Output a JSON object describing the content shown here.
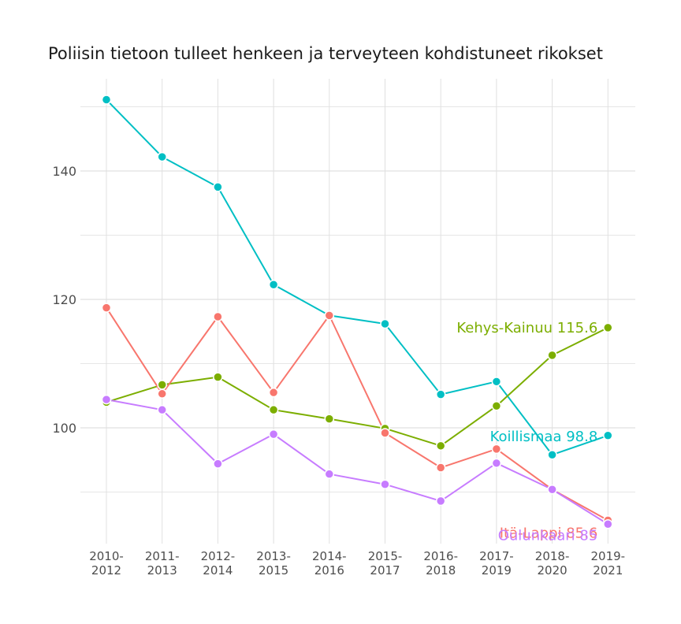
{
  "chart_data": {
    "type": "line",
    "title": "Poliisin tietoon tulleet henkeen ja terveyteen kohdistuneet rikokset",
    "xlabel": "",
    "ylabel": "",
    "categories": [
      [
        "2010-",
        "2012"
      ],
      [
        "2011-",
        "2013"
      ],
      [
        "2012-",
        "2014"
      ],
      [
        "2013-",
        "2015"
      ],
      [
        "2014-",
        "2016"
      ],
      [
        "2015-",
        "2017"
      ],
      [
        "2016-",
        "2018"
      ],
      [
        "2017-",
        "2019"
      ],
      [
        "2018-",
        "2020"
      ],
      [
        "2019-",
        "2021"
      ]
    ],
    "ylim": [
      82,
      153
    ],
    "yticks": [
      100,
      120,
      140
    ],
    "yminor": [
      90,
      110,
      130,
      150
    ],
    "grid": true,
    "series": [
      {
        "name": "Koillismaa",
        "color": "#00bfc4",
        "values": [
          151.1,
          142.2,
          137.5,
          122.3,
          117.5,
          116.2,
          105.2,
          107.2,
          95.8,
          98.8
        ],
        "end_label": "Koillismaa 98.8"
      },
      {
        "name": "Kehys-Kainuu",
        "color": "#7cae00",
        "values": [
          104.0,
          106.7,
          107.9,
          102.8,
          101.4,
          99.9,
          97.2,
          103.4,
          111.3,
          115.6
        ],
        "end_label": "Kehys-Kainuu 115.6"
      },
      {
        "name": "Itä-Lappi",
        "color": "#f8766d",
        "values": [
          118.7,
          105.3,
          117.3,
          105.5,
          117.5,
          99.2,
          93.8,
          96.7,
          90.4,
          85.6
        ],
        "end_label": "Itä-Lappi 85.6"
      },
      {
        "name": "Oulunkaari",
        "color": "#c77cff",
        "values": [
          104.4,
          102.8,
          94.4,
          99.0,
          92.8,
          91.2,
          88.6,
          94.5,
          90.4,
          85.0
        ],
        "end_label": "Oulunkaari 85"
      }
    ]
  }
}
